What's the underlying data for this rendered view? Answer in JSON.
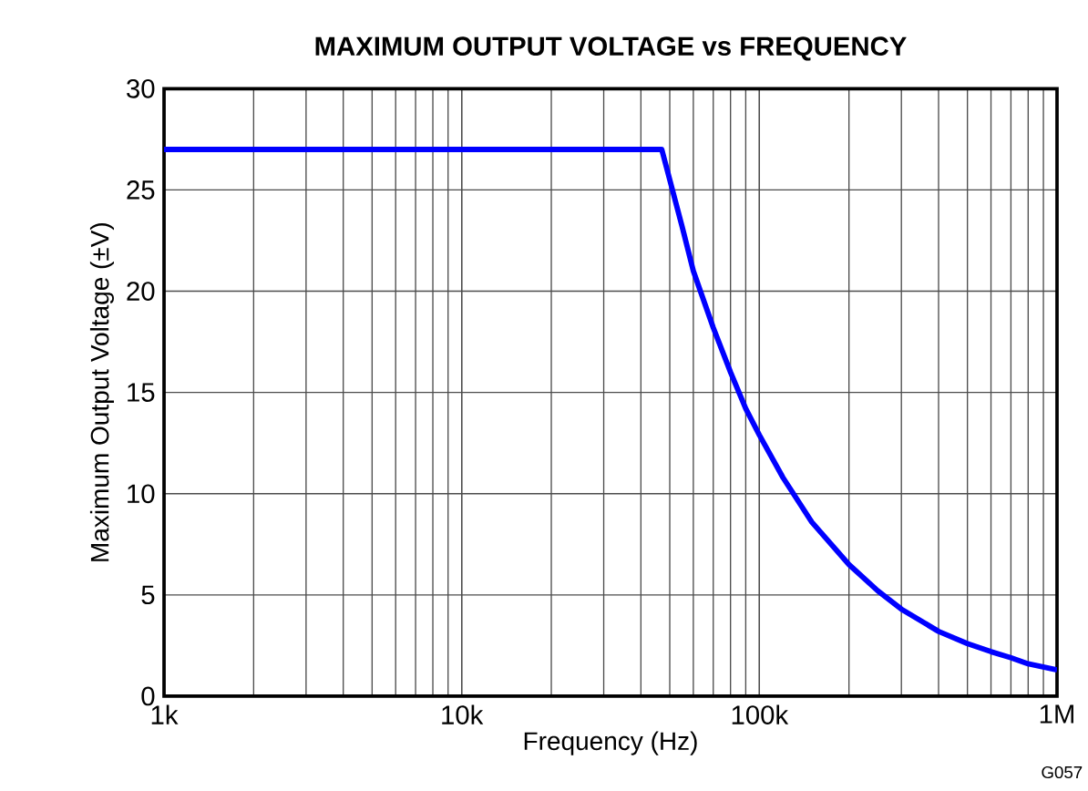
{
  "chart_data": {
    "type": "line",
    "title": "MAXIMUM OUTPUT VOLTAGE vs FREQUENCY",
    "xlabel": "Frequency (Hz)",
    "ylabel": "Maximum Output Voltage (±V)",
    "annotations": [
      "G057"
    ],
    "log": "x",
    "grid": true,
    "marker": "none",
    "line_style": "solid",
    "xlim": [
      1000,
      1000000
    ],
    "xticks": [
      {
        "value": 1000,
        "label": "1k"
      },
      {
        "value": 10000,
        "label": "10k"
      },
      {
        "value": 100000,
        "label": "100k"
      },
      {
        "value": 1000000,
        "label": "1M"
      }
    ],
    "ylim": [
      0,
      30
    ],
    "yticks": [
      0,
      5,
      10,
      15,
      20,
      25,
      30
    ],
    "series": [
      {
        "color": "#0000ff",
        "x": [
          1000,
          47000,
          50000,
          55000,
          60000,
          70000,
          80000,
          90000,
          100000,
          120000,
          150000,
          200000,
          250000,
          300000,
          400000,
          500000,
          600000,
          700000,
          800000,
          1000000
        ],
        "values": [
          27,
          27,
          25.5,
          23.2,
          21,
          18.2,
          16,
          14.2,
          12.9,
          10.8,
          8.6,
          6.5,
          5.2,
          4.3,
          3.2,
          2.6,
          2.2,
          1.9,
          1.6,
          1.3
        ]
      }
    ]
  }
}
